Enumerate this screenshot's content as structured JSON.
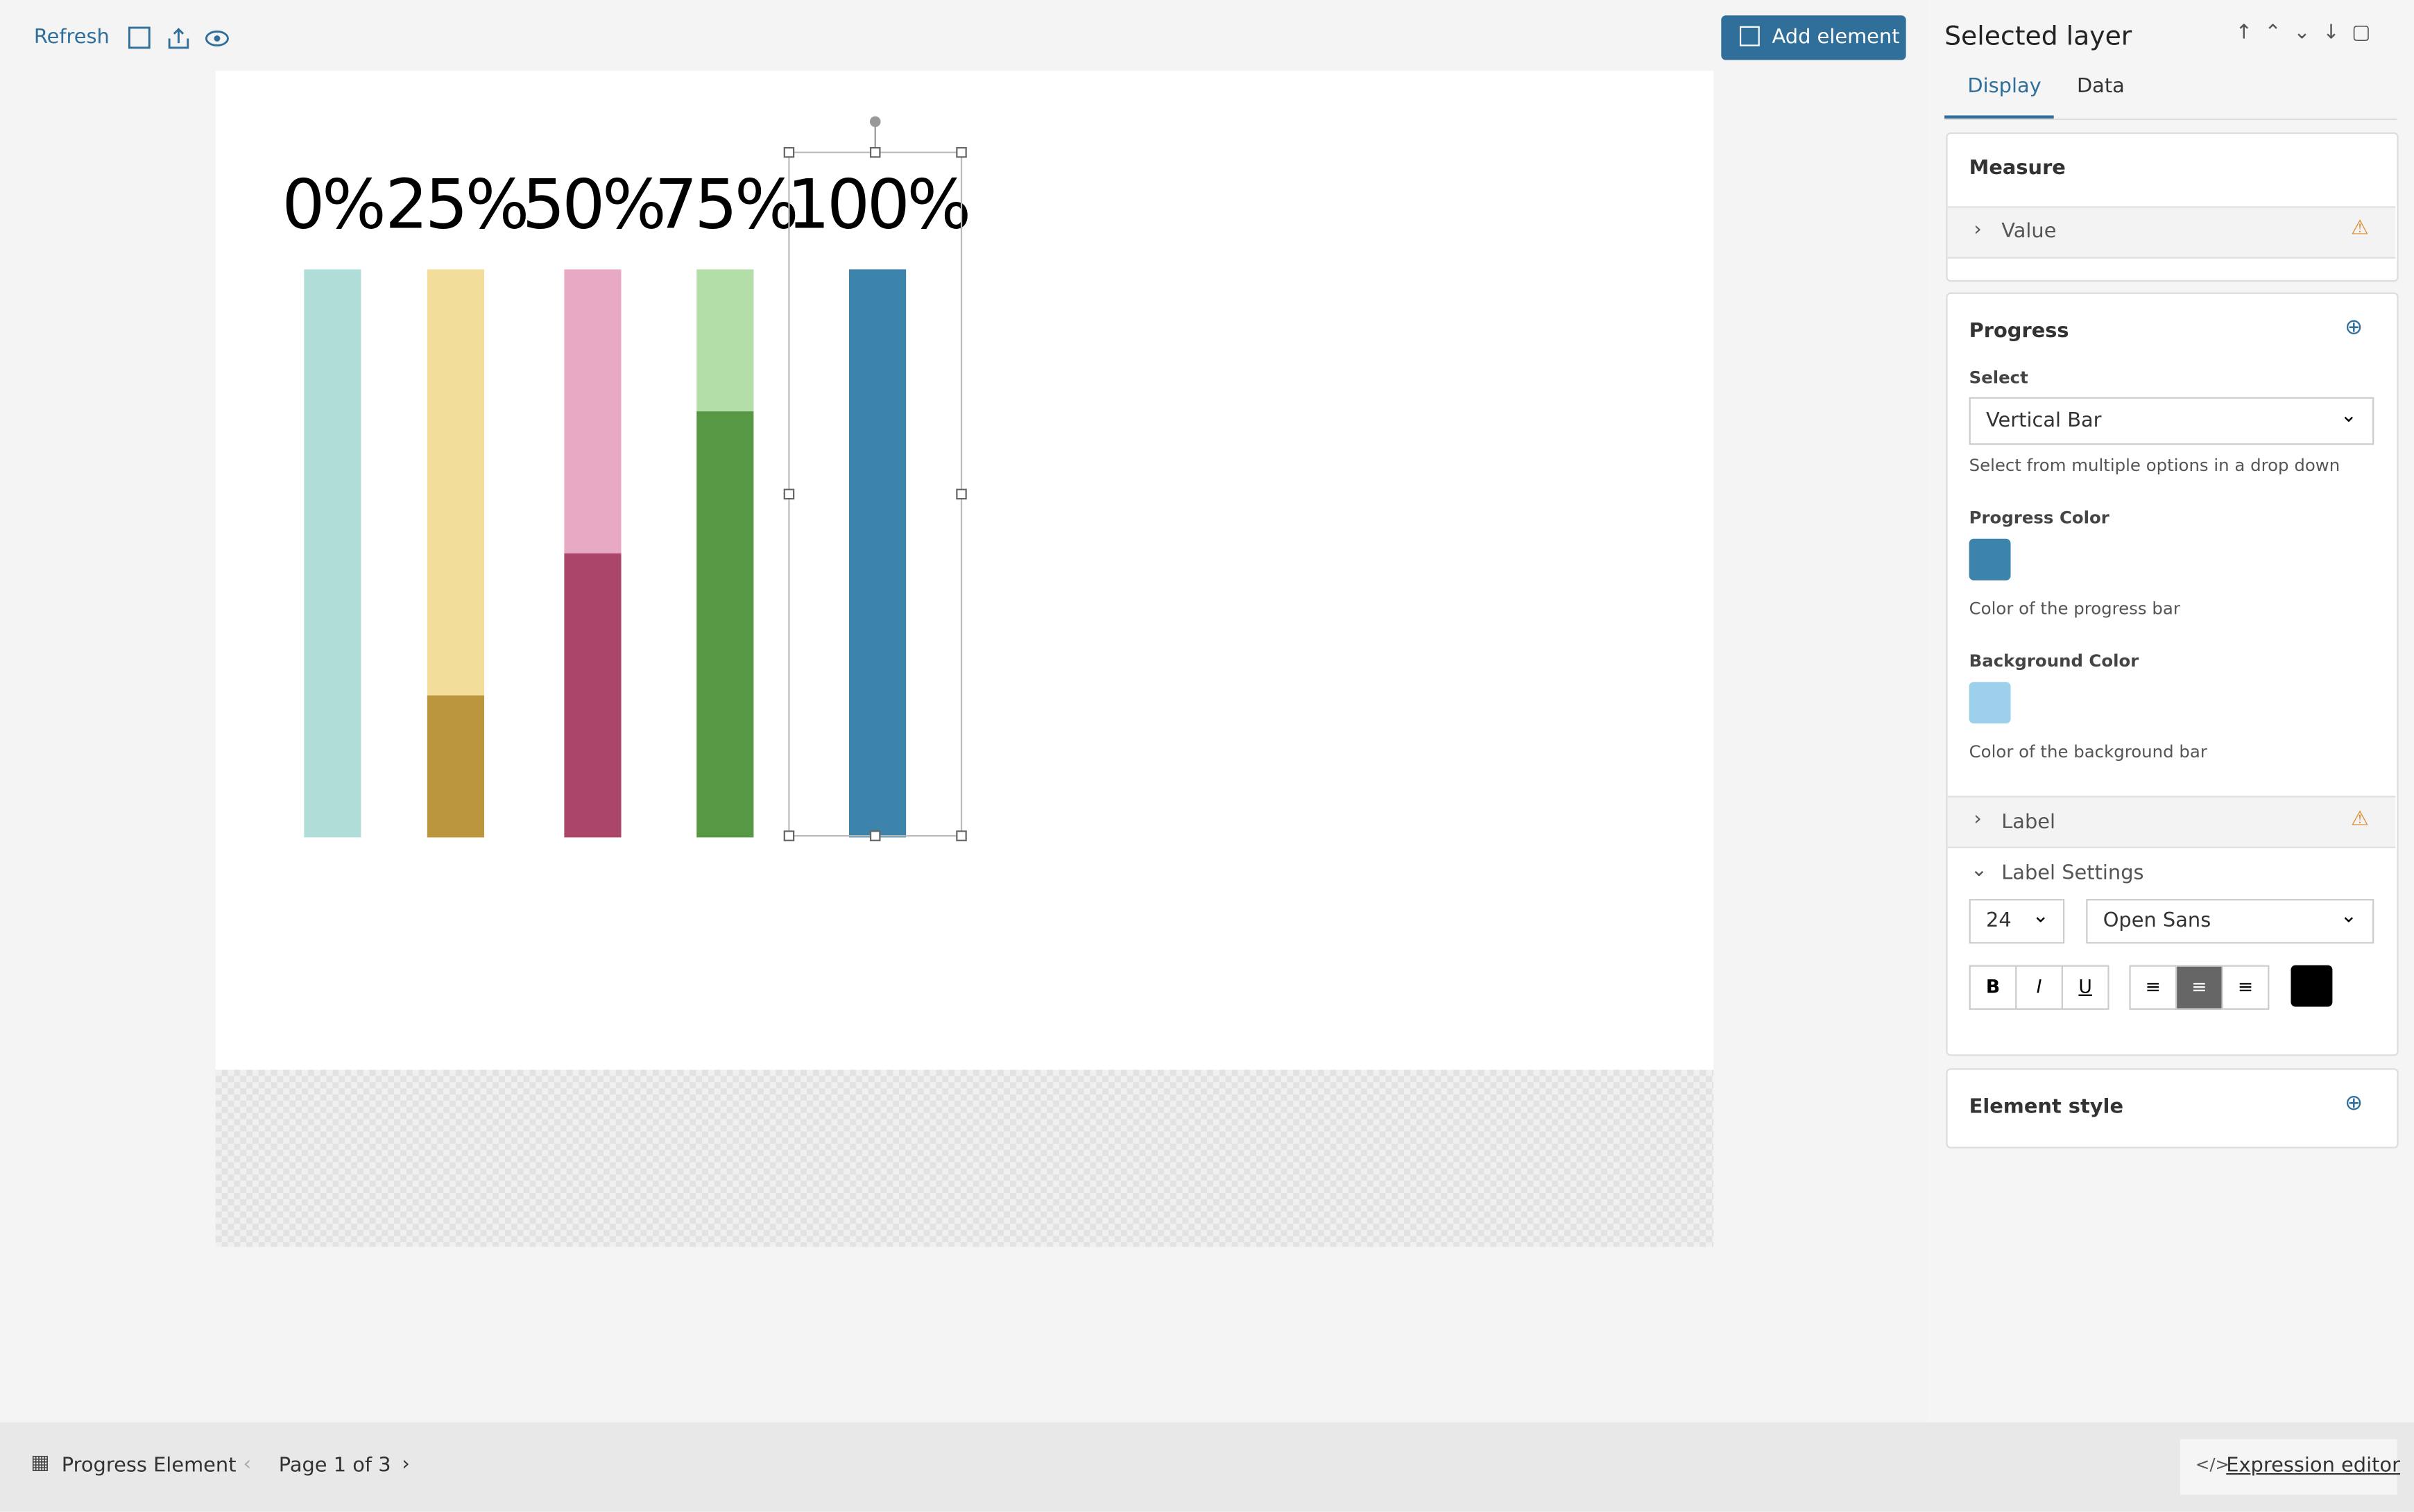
{
  "toolbar": {
    "refresh": "Refresh",
    "add_element": "Add element"
  },
  "canvas": {
    "ylim": [
      0,
      100
    ],
    "progress": [
      {
        "label": "0%",
        "value": 0,
        "color": "#3f9c8f",
        "background": "#b1ddd8"
      },
      {
        "label": "25%",
        "value": 25,
        "color": "#bb963f",
        "background": "#f3dd9a"
      },
      {
        "label": "50%",
        "value": 50,
        "color": "#ab466a",
        "background": "#e8a9c4"
      },
      {
        "label": "75%",
        "value": 75,
        "color": "#579845",
        "background": "#b3dea8"
      },
      {
        "label": "100%",
        "value": 100,
        "color": "#3d84ad",
        "background": "#9dd0ea"
      }
    ]
  },
  "panel": {
    "title": "Selected layer",
    "tabs": [
      "Display",
      "Data"
    ],
    "measure": {
      "title": "Measure",
      "value": "Value"
    },
    "progress": {
      "title": "Progress",
      "select_label": "Select",
      "select_value": "Vertical Bar",
      "select_help": "Select from multiple options in a drop down",
      "progress_color_label": "Progress Color",
      "progress_color_help": "Color of the progress bar",
      "background_color_label": "Background Color",
      "background_color_help": "Color of the background bar",
      "label": "Label",
      "label_settings": "Label Settings",
      "font_size": "24",
      "font": "Open Sans",
      "bold": "B",
      "italic": "I",
      "underline": "U"
    },
    "element_style": "Element style"
  },
  "footer": {
    "element": "Progress Element",
    "page": "Page 1 of 3",
    "expression_editor": "Expression editor"
  }
}
